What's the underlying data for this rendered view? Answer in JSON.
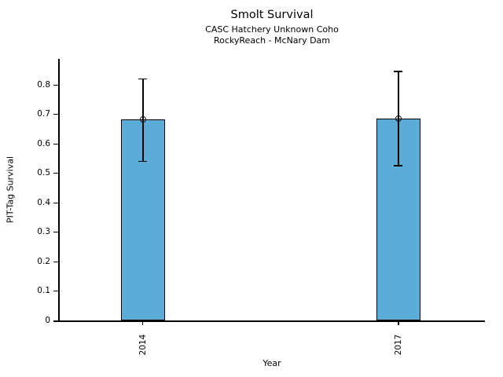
{
  "chart_data": {
    "type": "bar",
    "title": "Smolt Survival",
    "subtitle": [
      "CASC Hatchery Unknown Coho",
      "RockyReach - McNary Dam"
    ],
    "xlabel": "Year",
    "ylabel": "PIT-Tag Survival",
    "categories": [
      "2014",
      "2017"
    ],
    "values": [
      0.682,
      0.685
    ],
    "error_bars": {
      "low": [
        0.54,
        0.525
      ],
      "high": [
        0.82,
        0.845
      ]
    },
    "ylim": [
      0,
      0.888
    ],
    "yticks": [
      0,
      0.1,
      0.2,
      0.3,
      0.4,
      0.5,
      0.6,
      0.7,
      0.8
    ],
    "grid": false,
    "legend": "none",
    "bar_color": "#5bacd6",
    "bar_edge_color": "#000000",
    "error_color": "#000000",
    "marker": "open-circle"
  }
}
